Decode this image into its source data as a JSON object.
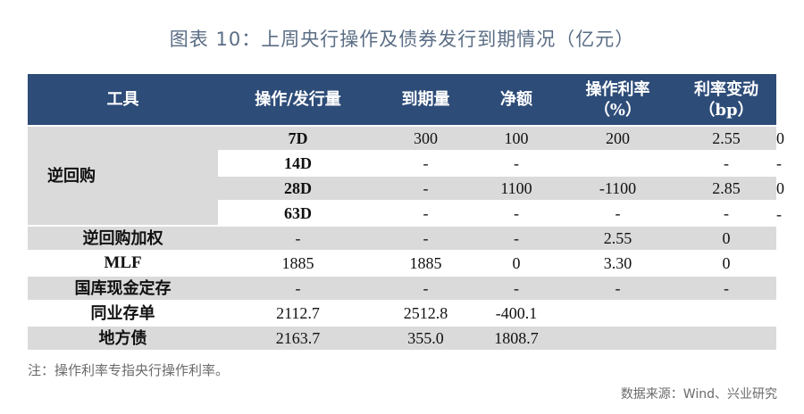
{
  "title": "图表 10：上周央行操作及债券发行到期情况（亿元）",
  "headers": {
    "tool": "工具",
    "op": "操作/发行量",
    "mat": "到期量",
    "net": "净额",
    "rate_l1": "操作利率",
    "rate_l2": "（%）",
    "chg_l1": "利率变动",
    "chg_l2": "（bp）"
  },
  "group_label": "逆回购",
  "rows": [
    {
      "label": "7D",
      "op": "300",
      "mat": "100",
      "net": "200",
      "rate": "2.55",
      "chg": "0"
    },
    {
      "label": "14D",
      "op": "-",
      "mat": "-",
      "net": "",
      "rate": "-",
      "chg": "-"
    },
    {
      "label": "28D",
      "op": "-",
      "mat": "1100",
      "net": "-1100",
      "rate": "2.85",
      "chg": "0"
    },
    {
      "label": "63D",
      "op": "-",
      "mat": "-",
      "net": "-",
      "rate": "-",
      "chg": "-"
    },
    {
      "label": "逆回购加权",
      "op": "-",
      "mat": "-",
      "net": "-",
      "rate": "2.55",
      "chg": "0"
    },
    {
      "label": "MLF",
      "op": "1885",
      "mat": "1885",
      "net": "0",
      "rate": "3.30",
      "chg": "0"
    },
    {
      "label": "国库现金定存",
      "op": "-",
      "mat": "-",
      "net": "-",
      "rate": "-",
      "chg": "-"
    },
    {
      "label": "同业存单",
      "op": "2112.7",
      "mat": "2512.8",
      "net": "-400.1",
      "rate": "",
      "chg": ""
    },
    {
      "label": "地方债",
      "op": "2163.7",
      "mat": "355.0",
      "net": "1808.7",
      "rate": "",
      "chg": ""
    }
  ],
  "note": "注：操作利率专指央行操作利率。",
  "source": "数据来源：Wind、兴业研究"
}
